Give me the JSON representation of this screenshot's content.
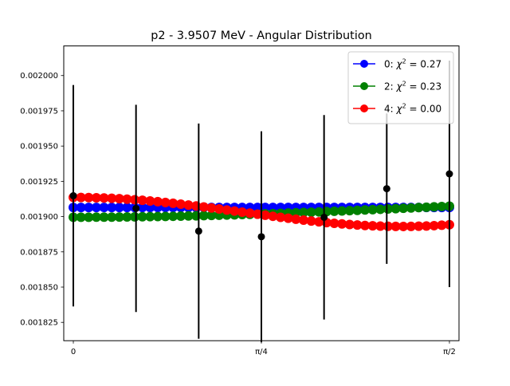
{
  "chart_data": {
    "type": "line",
    "title": "p2 - 3.9507 MeV - Angular Distribution",
    "xlabel": "",
    "ylabel": "",
    "xlim": [
      -0.04,
      1.6108
    ],
    "ylim": [
      0.001812,
      0.002021
    ],
    "x_ticks": [
      {
        "value": 0,
        "label": "0"
      },
      {
        "value": 0.7854,
        "label": "π/4"
      },
      {
        "value": 1.5708,
        "label": "π/2"
      }
    ],
    "y_ticks": [
      {
        "value": 0.001825,
        "label": "0.001825"
      },
      {
        "value": 0.00185,
        "label": "0.001850"
      },
      {
        "value": 0.001875,
        "label": "0.001875"
      },
      {
        "value": 0.0019,
        "label": "0.001900"
      },
      {
        "value": 0.001925,
        "label": "0.001925"
      },
      {
        "value": 0.00195,
        "label": "0.001950"
      },
      {
        "value": 0.001975,
        "label": "0.001975"
      },
      {
        "value": 0.002,
        "label": "0.002000"
      }
    ],
    "grid": false,
    "legend_position": "top-right",
    "measurements": {
      "x": [
        0,
        0.2618,
        0.5236,
        0.7854,
        1.0472,
        1.309,
        1.5708
      ],
      "y": [
        0.0019148,
        0.0019058,
        0.0018897,
        0.0018857,
        0.0018995,
        0.0019198,
        0.0019303
      ],
      "yerr": [
        7.85e-05,
        7.35e-05,
        7.63e-05,
        7.48e-05,
        7.25e-05,
        5.33e-05,
        8.03e-05
      ],
      "color": "#000000"
    },
    "series": [
      {
        "name": "0: χ² = 0.27",
        "legend_prefix": "0: ",
        "legend_math": "χ",
        "legend_suffix": " = 0.27",
        "color": "#0000ff",
        "fit": "legendre",
        "coefficients": [
          0.0019065
        ]
      },
      {
        "name": "2: χ² = 0.23",
        "legend_prefix": "2: ",
        "legend_math": "χ",
        "legend_suffix": " = 0.23",
        "color": "#008000",
        "fit": "legendre",
        "coefficients": [
          0.0019074,
          -7.85e-06
        ]
      },
      {
        "name": "4: χ² = 0.00",
        "legend_prefix": "4: ",
        "legend_math": "χ",
        "legend_suffix": " = 0.00",
        "color": "#ff0000",
        "fit": "legendre",
        "coefficients": [
          0.0019049,
          -1.26e-05,
          2.13e-05
        ]
      }
    ]
  }
}
